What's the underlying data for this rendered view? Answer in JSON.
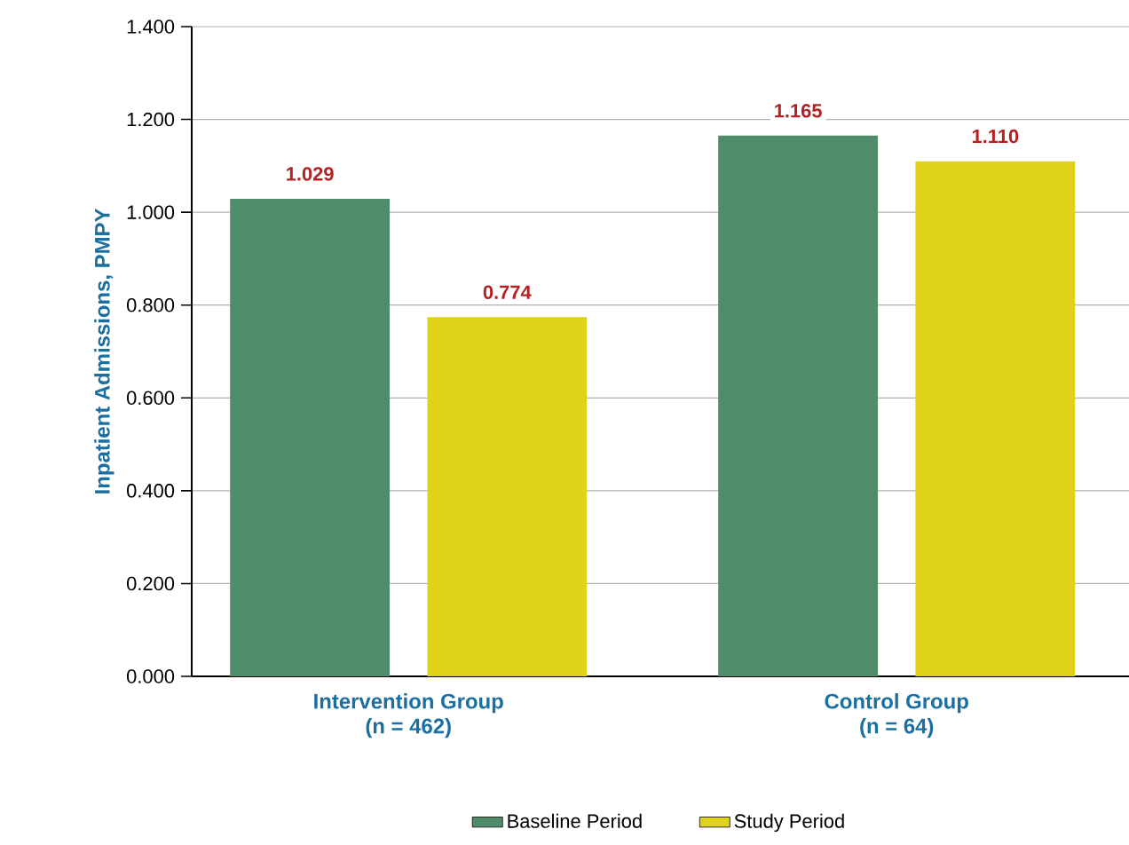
{
  "chart_data": {
    "type": "bar",
    "ylabel": "Inpatient Admissions, PMPY",
    "categories": [
      "Intervention Group (n = 462)",
      "Control Group (n = 64)"
    ],
    "series": [
      {
        "name": "Baseline Period",
        "color": "#4e8c6a",
        "values": [
          1.029,
          1.165
        ],
        "value_labels": [
          "1.029",
          "1.165"
        ]
      },
      {
        "name": "Study Period",
        "color": "#e0d21a",
        "values": [
          0.774,
          1.11
        ],
        "value_labels": [
          "0.774",
          "1.110"
        ]
      }
    ],
    "ylim": [
      0,
      1.4
    ],
    "yticks": [
      {
        "value": 0,
        "label": "0.000"
      },
      {
        "value": 0.2,
        "label": "0.200"
      },
      {
        "value": 0.4,
        "label": "0.400"
      },
      {
        "value": 0.6,
        "label": "0.600"
      },
      {
        "value": 0.8,
        "label": "0.800"
      },
      {
        "value": 1.0,
        "label": "1.000"
      },
      {
        "value": 1.2,
        "label": "1.200"
      },
      {
        "value": 1.4,
        "label": "1.400"
      }
    ],
    "grid": "y",
    "legend": "bottom"
  }
}
